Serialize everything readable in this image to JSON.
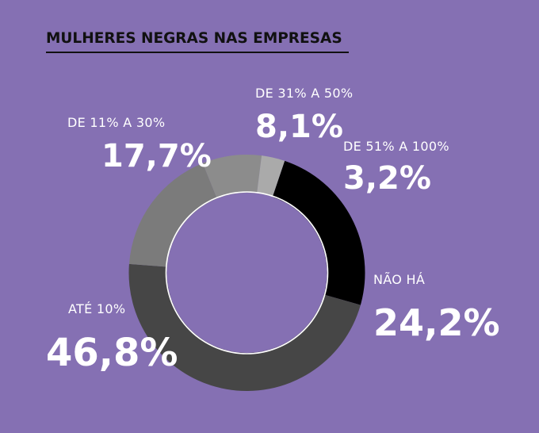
{
  "chart_data": {
    "type": "pie",
    "variant": "donut",
    "title": "MULHERES NEGRAS NAS EMPRESAS",
    "unit": "%",
    "slices": [
      {
        "label": "DE 31% A 50%",
        "value": 8.1,
        "display": "8,1%",
        "color": "#8c8c8c"
      },
      {
        "label": "DE 51% A 100%",
        "value": 3.2,
        "display": "3,2%",
        "color": "#aaaaaa"
      },
      {
        "label": "NÃO HÁ",
        "value": 24.2,
        "display": "24,2%",
        "color": "#000000"
      },
      {
        "label": "ATÉ 10%",
        "value": 46.8,
        "display": "46,8%",
        "color": "#464646"
      },
      {
        "label": "DE 11% A 30%",
        "value": 17.7,
        "display": "17,7%",
        "color": "#7b7b7b"
      }
    ]
  }
}
